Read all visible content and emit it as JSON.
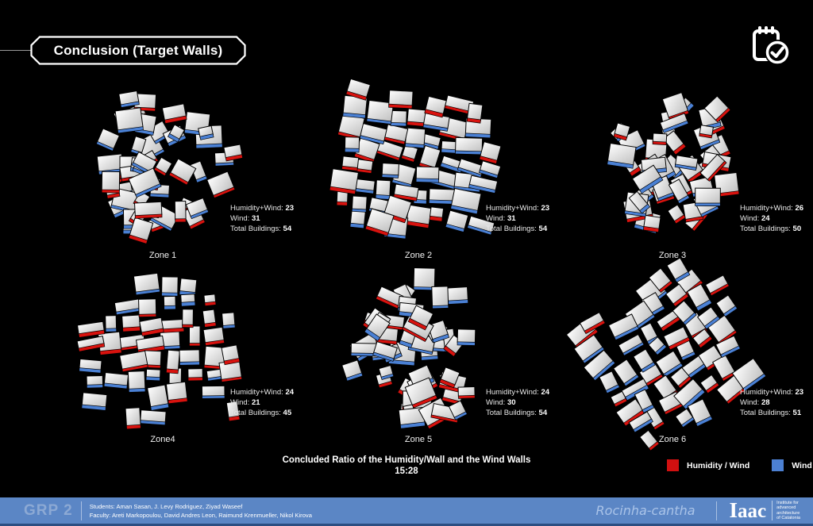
{
  "header": {
    "title": "Conclusion (Target Walls)",
    "icon": "clipboard-check-icon"
  },
  "stats_labels": {
    "humidity_wind": "Humidity+Wind:",
    "wind": "Wind:",
    "total": "Total Buildings:"
  },
  "zones": [
    {
      "label": "Zone 1",
      "humidity_wind": 23,
      "wind": 31,
      "total_buildings": 54,
      "seed": 7,
      "mode": "scatter",
      "base_rot": 0
    },
    {
      "label": "Zone 2",
      "humidity_wind": 23,
      "wind": 31,
      "total_buildings": 54,
      "seed": 13,
      "mode": "grid",
      "base_rot": 10
    },
    {
      "label": "Zone 3",
      "humidity_wind": 26,
      "wind": 24,
      "total_buildings": 50,
      "seed": 21,
      "mode": "scatter",
      "base_rot": -15
    },
    {
      "label": "Zone4",
      "humidity_wind": 24,
      "wind": 21,
      "total_buildings": 45,
      "seed": 5,
      "mode": "grid",
      "base_rot": -3
    },
    {
      "label": "Zone 5",
      "humidity_wind": 24,
      "wind": 30,
      "total_buildings": 54,
      "seed": 9,
      "mode": "scatter",
      "base_rot": 4
    },
    {
      "label": "Zone 6",
      "humidity_wind": 23,
      "wind": 28,
      "total_buildings": 51,
      "seed": 17,
      "mode": "grid",
      "base_rot": -33
    }
  ],
  "chart_data": {
    "type": "table",
    "title": "Concluded Ratio of the Humidity/Wall and the Wind Walls",
    "categories": [
      "Zone 1",
      "Zone 2",
      "Zone 3",
      "Zone4",
      "Zone 5",
      "Zone 6"
    ],
    "series": [
      {
        "name": "Humidity+Wind",
        "values": [
          23,
          23,
          26,
          24,
          24,
          23
        ]
      },
      {
        "name": "Wind",
        "values": [
          31,
          31,
          24,
          21,
          30,
          28
        ]
      },
      {
        "name": "Total Buildings",
        "values": [
          54,
          54,
          50,
          45,
          54,
          51
        ]
      }
    ]
  },
  "caption": {
    "line1": "Concluded Ratio of the Humidity/Wall and the Wind Walls",
    "line2": "15:28"
  },
  "legend": [
    {
      "label": "Humidity / Wind",
      "color": "#d11010"
    },
    {
      "label": "Wind",
      "color": "#4c80d2"
    }
  ],
  "colors": {
    "humidity": "#d8120e",
    "wind": "#4a80d4",
    "footer_bg": "#5b86c5"
  },
  "footer": {
    "group": "GRP 2",
    "students": "Students: Aman Sasan, J. Levy Rodriguez, Ziyad Waseef",
    "faculty": "Faculty: Areti Markopoulou, David Andres Leon, Raimund Krenmueller, Nikol Kirova",
    "project": "Rocinha-cantha",
    "logo": "Iaac",
    "logo_sub_lines": [
      "Institute for",
      "advanced",
      "architecture",
      "of Catalonia"
    ]
  }
}
